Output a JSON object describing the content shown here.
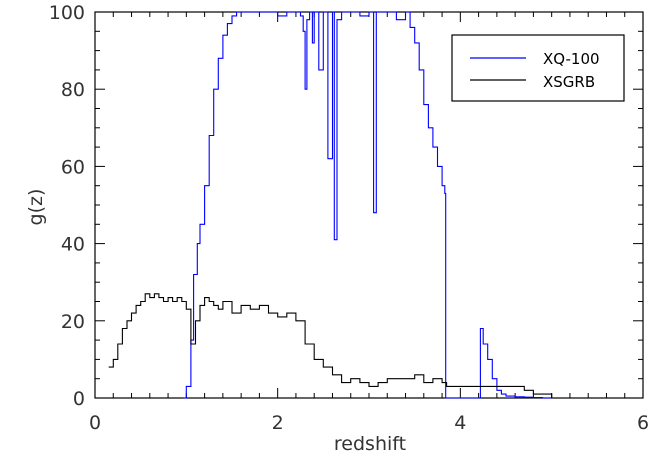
{
  "chart_data": {
    "type": "line",
    "title": "",
    "xlabel": "redshift",
    "ylabel": "g(z)",
    "xlim": [
      0,
      6
    ],
    "ylim": [
      0,
      100
    ],
    "x_ticks": [
      "0",
      "2",
      "4",
      "6"
    ],
    "y_ticks": [
      "0",
      "20",
      "40",
      "60",
      "80",
      "100"
    ],
    "grid": false,
    "legend_position": "top-right",
    "series": [
      {
        "name": "XQ-100",
        "color": "#0000ff",
        "x": [
          0.97,
          1.0,
          1.05,
          1.08,
          1.12,
          1.15,
          1.2,
          1.25,
          1.3,
          1.35,
          1.4,
          1.45,
          1.5,
          1.55,
          1.6,
          1.7,
          1.8,
          1.9,
          2.0,
          2.1,
          2.2,
          2.25,
          2.28,
          2.3,
          2.32,
          2.35,
          2.38,
          2.4,
          2.45,
          2.5,
          2.55,
          2.6,
          2.62,
          2.65,
          2.7,
          2.8,
          2.9,
          3.0,
          3.05,
          3.08,
          3.1,
          3.2,
          3.3,
          3.4,
          3.45,
          3.5,
          3.55,
          3.6,
          3.65,
          3.7,
          3.75,
          3.8,
          3.83,
          3.84,
          3.85,
          4.2,
          4.22,
          4.25,
          4.3,
          4.35,
          4.4,
          4.45,
          4.5,
          4.6,
          4.7,
          4.8,
          4.9,
          5.0
        ],
        "y": [
          0,
          3,
          15,
          32,
          40,
          45,
          55,
          68,
          80,
          88,
          94,
          97,
          99,
          100,
          100,
          100,
          100,
          100,
          99,
          100,
          100,
          99,
          95,
          80,
          98,
          100,
          92,
          100,
          85,
          100,
          62,
          100,
          41,
          98,
          100,
          100,
          99,
          100,
          48,
          100,
          100,
          100,
          98,
          100,
          96,
          92,
          85,
          76,
          70,
          65,
          60,
          55,
          53,
          0,
          0,
          0,
          18,
          14,
          10,
          5,
          2,
          1,
          0.5,
          0.3,
          0.2,
          0.1,
          0,
          0
        ]
      },
      {
        "name": "XSGRB",
        "color": "#000000",
        "x": [
          0.15,
          0.2,
          0.25,
          0.3,
          0.35,
          0.4,
          0.45,
          0.5,
          0.55,
          0.6,
          0.65,
          0.7,
          0.75,
          0.8,
          0.85,
          0.9,
          0.95,
          1.0,
          1.05,
          1.1,
          1.15,
          1.2,
          1.25,
          1.3,
          1.35,
          1.4,
          1.5,
          1.6,
          1.7,
          1.8,
          1.9,
          2.0,
          2.1,
          2.2,
          2.3,
          2.4,
          2.5,
          2.6,
          2.7,
          2.8,
          2.9,
          3.0,
          3.1,
          3.2,
          3.3,
          3.4,
          3.5,
          3.6,
          3.7,
          3.8,
          3.85,
          4.2,
          4.3,
          4.4,
          4.5,
          4.6,
          4.7,
          4.8,
          4.9,
          5.0
        ],
        "y": [
          8,
          10,
          14,
          18,
          20,
          22,
          24,
          25,
          27,
          26,
          27,
          26,
          25,
          26,
          25,
          26,
          25,
          23,
          14,
          20,
          24,
          26,
          25,
          24,
          23,
          25,
          22,
          24,
          23,
          24,
          22,
          21,
          22,
          20,
          14,
          10,
          8,
          6,
          4,
          5,
          4,
          3,
          4,
          5,
          5,
          5,
          6,
          4,
          5,
          4,
          3,
          3,
          3,
          3,
          3,
          3,
          2,
          1,
          1,
          0
        ]
      }
    ]
  }
}
